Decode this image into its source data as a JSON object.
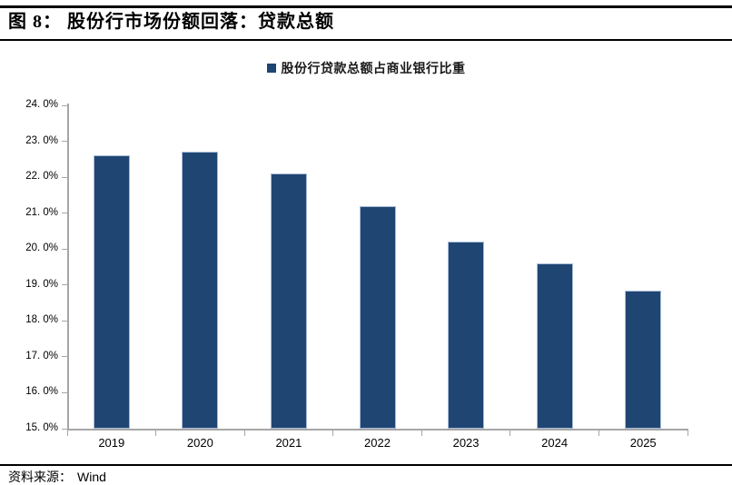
{
  "figure": {
    "label": "图 8：",
    "title": "股份行市场份额回落：贷款总额"
  },
  "legend": {
    "label": "股份行贷款总额占商业银行比重",
    "marker_color": "#1f4573"
  },
  "source": {
    "prefix": "资料来源：",
    "value": "Wind"
  },
  "colors": {
    "bar": "#1f4573",
    "bar_border": "#a9bdd9",
    "axis": "#a6a6a6",
    "text": "#000000",
    "rule": "#000000"
  },
  "chart_data": {
    "type": "bar",
    "title": "股份行贷款总额占商业银行比重",
    "categories": [
      "2019",
      "2020",
      "2021",
      "2022",
      "2023",
      "2024",
      "2025"
    ],
    "values": [
      22.6,
      22.7,
      22.1,
      21.2,
      20.2,
      19.6,
      18.85
    ],
    "unit": "%",
    "xlabel": "",
    "ylabel": "",
    "ylim": [
      15.0,
      24.0
    ],
    "ytick_step": 1.0,
    "ytick_labels": [
      "24. 0%",
      "23. 0%",
      "22. 0%",
      "21. 0%",
      "20. 0%",
      "19. 0%",
      "18. 0%",
      "17. 0%",
      "16. 0%",
      "15. 0%"
    ],
    "grid": false,
    "legend_position": "top-center"
  }
}
